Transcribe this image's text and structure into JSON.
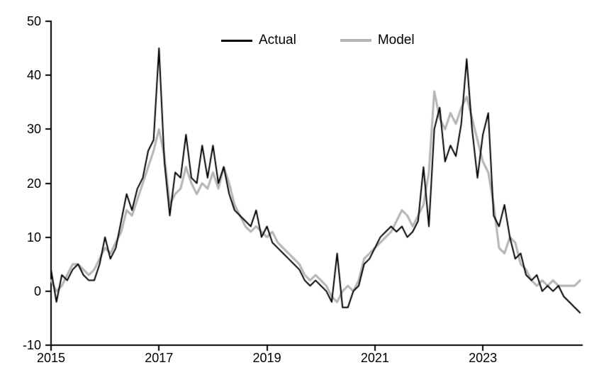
{
  "page": {
    "background_color": "#ffffff",
    "text_color": "#000000"
  },
  "chart_data": {
    "type": "line",
    "title": "",
    "xlabel": "",
    "ylabel": "",
    "grid": false,
    "legend_position": "top-center",
    "xlim": [
      2015,
      2024.85
    ],
    "ylim": [
      -10,
      50
    ],
    "x_ticks": [
      2015,
      2017,
      2019,
      2021,
      2023
    ],
    "y_ticks": [
      -10,
      0,
      10,
      20,
      30,
      40,
      50
    ],
    "x_start": 2015.0,
    "x_step": 0.1,
    "series": [
      {
        "name": "Actual",
        "color": "#000000",
        "width": 2,
        "values": [
          4,
          -2,
          3,
          2,
          4,
          5,
          3,
          2,
          2,
          5,
          10,
          6,
          8,
          13,
          18,
          15,
          19,
          21,
          26,
          28,
          45,
          24,
          14,
          22,
          21,
          29,
          21,
          20,
          27,
          21,
          27,
          20,
          23,
          18,
          15,
          14,
          13,
          12,
          15,
          10,
          12,
          9,
          8,
          7,
          6,
          5,
          4,
          2,
          1,
          2,
          1,
          0,
          -2,
          7,
          -3,
          -3,
          0,
          1,
          5,
          6,
          8,
          10,
          11,
          12,
          11,
          12,
          10,
          11,
          13,
          23,
          12,
          30,
          34,
          24,
          27,
          25,
          31,
          43,
          30,
          21,
          29,
          33,
          14,
          12,
          16,
          10,
          6,
          7,
          3,
          2,
          3,
          0,
          1,
          0,
          1,
          -1,
          -2,
          -3,
          -4
        ]
      },
      {
        "name": "Model",
        "color": "#b3b3b3",
        "width": 3,
        "values": [
          2,
          0,
          1,
          3,
          5,
          5,
          4,
          3,
          4,
          6,
          8,
          7,
          9,
          11,
          15,
          14,
          17,
          20,
          23,
          26,
          30,
          25,
          16,
          18,
          19,
          23,
          20,
          18,
          20,
          19,
          22,
          19,
          23,
          20,
          16,
          14,
          12,
          11,
          12,
          11,
          10,
          11,
          9,
          8,
          7,
          6,
          5,
          3,
          2,
          3,
          2,
          1,
          -1,
          -2,
          0,
          1,
          0,
          2,
          6,
          7,
          8,
          9,
          10,
          11,
          13,
          15,
          14,
          12,
          14,
          16,
          22,
          37,
          32,
          30,
          33,
          31,
          34,
          36,
          32,
          28,
          24,
          22,
          16,
          8,
          7,
          10,
          9,
          5,
          4,
          2,
          1,
          2,
          1,
          2,
          1,
          1,
          1,
          1,
          2
        ]
      }
    ]
  }
}
